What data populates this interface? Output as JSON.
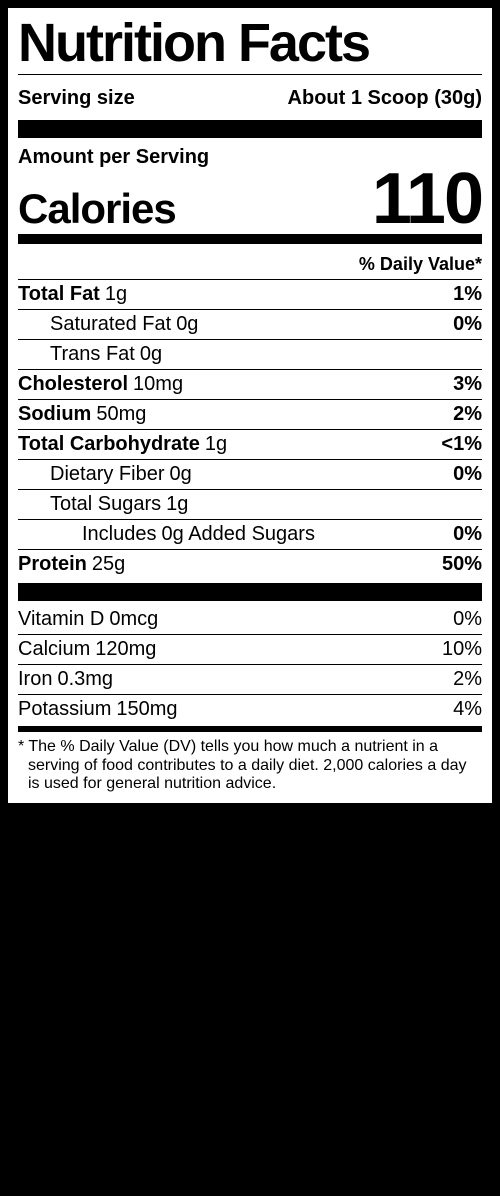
{
  "title": "Nutrition Facts",
  "serving": {
    "label": "Serving size",
    "value": "About 1 Scoop (30g)"
  },
  "amount_per_serving": "Amount per Serving",
  "calories": {
    "label": "Calories",
    "value": "110"
  },
  "dv_header": "% Daily Value*",
  "nutrients": [
    {
      "name": "Total Fat",
      "amount": "1g",
      "dv": "1%",
      "bold": true,
      "indent": 0
    },
    {
      "name": "Saturated Fat",
      "amount": "0g",
      "dv": "0%",
      "bold": false,
      "indent": 1
    },
    {
      "name": "Trans Fat",
      "amount": "0g",
      "dv": "",
      "bold": false,
      "indent": 1
    },
    {
      "name": "Cholesterol",
      "amount": "10mg",
      "dv": "3%",
      "bold": true,
      "indent": 0
    },
    {
      "name": "Sodium",
      "amount": "50mg",
      "dv": "2%",
      "bold": true,
      "indent": 0
    },
    {
      "name": "Total Carbohydrate",
      "amount": "1g",
      "dv": "<1%",
      "bold": true,
      "indent": 0
    },
    {
      "name": "Dietary Fiber",
      "amount": "0g",
      "dv": "0%",
      "bold": false,
      "indent": 1
    },
    {
      "name": "Total Sugars",
      "amount": "1g",
      "dv": "",
      "bold": false,
      "indent": 1
    },
    {
      "name": "Includes",
      "amount": "0g Added Sugars",
      "dv": "0%",
      "bold": false,
      "indent": 2
    },
    {
      "name": "Protein",
      "amount": "25g",
      "dv": "50%",
      "bold": true,
      "indent": 0
    }
  ],
  "vitamins": [
    {
      "name": "Vitamin D",
      "amount": "0mcg",
      "dv": "0%"
    },
    {
      "name": "Calcium",
      "amount": "120mg",
      "dv": "10%"
    },
    {
      "name": "Iron",
      "amount": "0.3mg",
      "dv": "2%"
    },
    {
      "name": "Potassium",
      "amount": "150mg",
      "dv": "4%"
    }
  ],
  "footnote": "* The % Daily Value (DV) tells you how much a nutrient in a serving of food contributes to a daily diet. 2,000 calories a  day is used for general nutrition advice."
}
